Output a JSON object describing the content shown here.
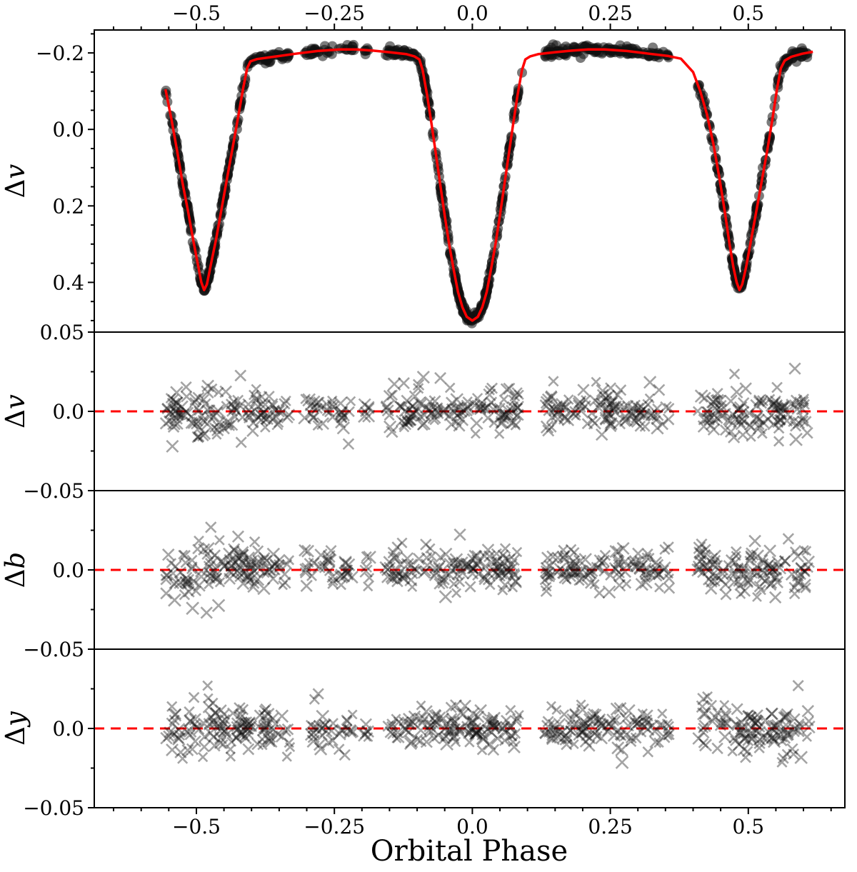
{
  "style": {
    "background": "#ffffff",
    "frame_color": "#000000",
    "model_color": "#ff0000",
    "marker_color": "#111111"
  },
  "chart_data": {
    "type": "scatter+line",
    "title": "",
    "xlabel": "Orbital Phase",
    "xlim": [
      -0.685,
      0.675
    ],
    "x_ticks": {
      "major": [
        -0.5,
        -0.25,
        0.0,
        0.25,
        0.5
      ],
      "labels": [
        "−0.5",
        "−0.25",
        "0.0",
        "0.25",
        "0.5"
      ],
      "minor_step": 0.05
    },
    "panels": [
      {
        "id": "lightcurve",
        "ylabel": "Δv",
        "y_top": -0.26,
        "y_bottom": 0.53,
        "y_major": [
          -0.2,
          0.0,
          0.2,
          0.4
        ],
        "y_tick_labels": [
          "−0.2",
          "0.0",
          "0.2",
          "0.4"
        ],
        "y_minor_step": 0.05,
        "content": "observed light curve (black circles) with model fit (red line); primary eclipse depth 0.50 mag at phase 0.0, secondary eclipses depth 0.42 mag near phase ±0.49"
      },
      {
        "id": "res-v",
        "ylabel": "Δv",
        "y_top": 0.05,
        "y_bottom": -0.05,
        "y_major": [
          0.05,
          0.0,
          -0.05
        ],
        "y_tick_labels": [
          "0.05",
          "0.0",
          "−0.05"
        ],
        "y_minor": [
          0.025,
          -0.025
        ],
        "content": "v-band residuals (black crosses) about red dashed zero line"
      },
      {
        "id": "res-b",
        "ylabel": "Δb",
        "y_top": 0.05,
        "y_bottom": -0.05,
        "y_major": [
          0.05,
          0.0,
          -0.05
        ],
        "y_tick_labels": [
          "",
          "0.0",
          "−0.05"
        ],
        "y_minor": [
          0.025,
          -0.025
        ],
        "content": "b-band residuals (black crosses) about red dashed zero line"
      },
      {
        "id": "res-y",
        "ylabel": "Δy",
        "y_top": 0.05,
        "y_bottom": -0.05,
        "y_major": [
          0.05,
          0.0,
          -0.05
        ],
        "y_tick_labels": [
          "",
          "0.0",
          "−0.05"
        ],
        "y_minor": [
          0.025,
          -0.025
        ],
        "content": "y-band residuals (black crosses) about red dashed zero line"
      }
    ],
    "model_curve": [
      [
        -0.556,
        -0.105
      ],
      [
        -0.545,
        -0.025
      ],
      [
        -0.535,
        0.055
      ],
      [
        -0.525,
        0.14
      ],
      [
        -0.515,
        0.215
      ],
      [
        -0.505,
        0.295
      ],
      [
        -0.497,
        0.355
      ],
      [
        -0.491,
        0.4
      ],
      [
        -0.486,
        0.42
      ],
      [
        -0.481,
        0.405
      ],
      [
        -0.474,
        0.355
      ],
      [
        -0.464,
        0.285
      ],
      [
        -0.454,
        0.205
      ],
      [
        -0.444,
        0.125
      ],
      [
        -0.434,
        0.045
      ],
      [
        -0.424,
        -0.035
      ],
      [
        -0.415,
        -0.11
      ],
      [
        -0.408,
        -0.16
      ],
      [
        -0.402,
        -0.178
      ],
      [
        -0.39,
        -0.184
      ],
      [
        -0.36,
        -0.19
      ],
      [
        -0.32,
        -0.198
      ],
      [
        -0.28,
        -0.205
      ],
      [
        -0.24,
        -0.209
      ],
      [
        -0.21,
        -0.209
      ],
      [
        -0.18,
        -0.206
      ],
      [
        -0.15,
        -0.202
      ],
      [
        -0.12,
        -0.197
      ],
      [
        -0.105,
        -0.191
      ],
      [
        -0.096,
        -0.183
      ],
      [
        -0.09,
        -0.155
      ],
      [
        -0.082,
        -0.09
      ],
      [
        -0.074,
        -0.015
      ],
      [
        -0.066,
        0.065
      ],
      [
        -0.058,
        0.145
      ],
      [
        -0.05,
        0.225
      ],
      [
        -0.042,
        0.3
      ],
      [
        -0.034,
        0.365
      ],
      [
        -0.026,
        0.425
      ],
      [
        -0.018,
        0.465
      ],
      [
        -0.01,
        0.49
      ],
      [
        0.0,
        0.5
      ],
      [
        0.01,
        0.49
      ],
      [
        0.018,
        0.465
      ],
      [
        0.026,
        0.425
      ],
      [
        0.034,
        0.365
      ],
      [
        0.042,
        0.3
      ],
      [
        0.05,
        0.225
      ],
      [
        0.058,
        0.145
      ],
      [
        0.066,
        0.065
      ],
      [
        0.074,
        -0.015
      ],
      [
        0.082,
        -0.09
      ],
      [
        0.09,
        -0.155
      ],
      [
        0.096,
        -0.183
      ],
      [
        0.105,
        -0.191
      ],
      [
        0.12,
        -0.197
      ],
      [
        0.15,
        -0.202
      ],
      [
        0.18,
        -0.206
      ],
      [
        0.21,
        -0.209
      ],
      [
        0.24,
        -0.209
      ],
      [
        0.28,
        -0.205
      ],
      [
        0.32,
        -0.198
      ],
      [
        0.355,
        -0.192
      ],
      [
        0.378,
        -0.185
      ],
      [
        0.4,
        -0.15
      ],
      [
        0.413,
        -0.1
      ],
      [
        0.425,
        -0.04
      ],
      [
        0.437,
        0.04
      ],
      [
        0.448,
        0.13
      ],
      [
        0.458,
        0.22
      ],
      [
        0.466,
        0.3
      ],
      [
        0.473,
        0.36
      ],
      [
        0.479,
        0.4
      ],
      [
        0.484,
        0.42
      ],
      [
        0.489,
        0.405
      ],
      [
        0.496,
        0.36
      ],
      [
        0.505,
        0.29
      ],
      [
        0.515,
        0.21
      ],
      [
        0.525,
        0.13
      ],
      [
        0.535,
        0.05
      ],
      [
        0.544,
        -0.03
      ],
      [
        0.552,
        -0.105
      ],
      [
        0.559,
        -0.16
      ],
      [
        0.566,
        -0.18
      ],
      [
        0.578,
        -0.19
      ],
      [
        0.598,
        -0.198
      ],
      [
        0.617,
        -0.203
      ]
    ],
    "coverage_segments": [
      {
        "x0": -0.556,
        "x1": -0.408,
        "n_lc": 150,
        "n_res": 85,
        "res_spread": 1.35
      },
      {
        "x0": -0.408,
        "x1": -0.33,
        "n_lc": 55,
        "n_res": 40,
        "res_spread": 1.0
      },
      {
        "x0": -0.304,
        "x1": -0.252,
        "n_lc": 26,
        "n_res": 22,
        "res_spread": 1.0
      },
      {
        "x0": -0.242,
        "x1": -0.214,
        "n_lc": 12,
        "n_res": 12,
        "res_spread": 0.9
      },
      {
        "x0": -0.196,
        "x1": -0.186,
        "n_lc": 6,
        "n_res": 6,
        "res_spread": 0.8
      },
      {
        "x0": -0.157,
        "x1": 0.085,
        "n_lc": 225,
        "n_res": 125,
        "res_spread": 1.0
      },
      {
        "x0": 0.13,
        "x1": 0.358,
        "n_lc": 150,
        "n_res": 110,
        "res_spread": 0.95
      },
      {
        "x0": 0.408,
        "x1": 0.61,
        "n_lc": 165,
        "n_res": 110,
        "res_spread": 1.25
      },
      {
        "x0": -0.094,
        "x1": 0.092,
        "n_lc": 90,
        "n_res": 0,
        "res_spread": 1.0
      },
      {
        "x0": 0.44,
        "x1": 0.525,
        "n_lc": 55,
        "n_res": 0,
        "res_spread": 1.0
      },
      {
        "x0": -0.545,
        "x1": -0.43,
        "n_lc": 60,
        "n_res": 0,
        "res_spread": 1.0
      }
    ],
    "noise": {
      "seed_lc": 7,
      "seed_res": [
        11,
        23,
        37
      ],
      "lc_sigma": 0.006,
      "res_sigma": 0.0062
    }
  }
}
